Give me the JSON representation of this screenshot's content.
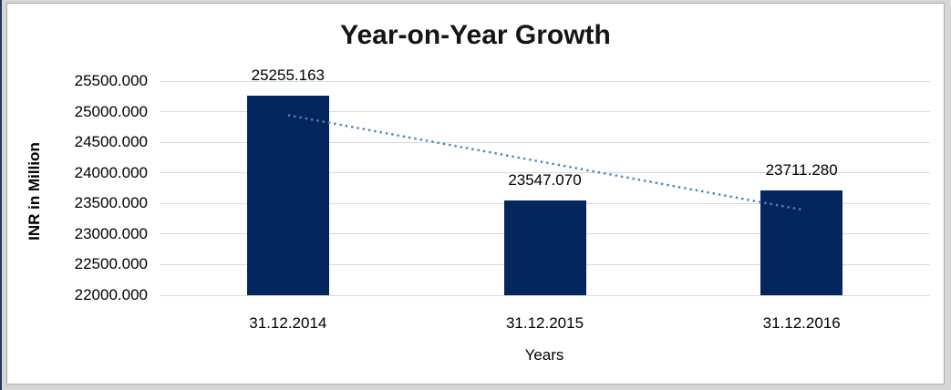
{
  "window": {
    "background_color": "#d6d6d6",
    "panel_background": "#ffffff",
    "panel_border_color": "#ababab",
    "left_edge_color": "#23375c"
  },
  "chart_data": {
    "type": "bar",
    "title": "Year-on-Year Growth",
    "categories": [
      "31.12.2014",
      "31.12.2015",
      "31.12.2016"
    ],
    "values": [
      25255.163,
      23547.07,
      23711.28
    ],
    "value_labels": [
      "25255.163",
      "23547.070",
      "23711.280"
    ],
    "xlabel": "Years",
    "ylabel": "INR in Million",
    "ylim": [
      22000,
      25500
    ],
    "ytick_step": 500,
    "ytick_labels": [
      "22000.000",
      "22500.000",
      "23000.000",
      "23500.000",
      "24000.000",
      "24500.000",
      "25000.000",
      "25500.000"
    ],
    "grid": true,
    "legend": "none",
    "bar_color": "#04265e",
    "gridline_color": "#d9d9d9",
    "trendline": {
      "style": "dotted",
      "color": "#4f81bd",
      "start_value": 24943.1,
      "end_value": 23399.2,
      "note": "linear trendline from first to last category center"
    }
  }
}
